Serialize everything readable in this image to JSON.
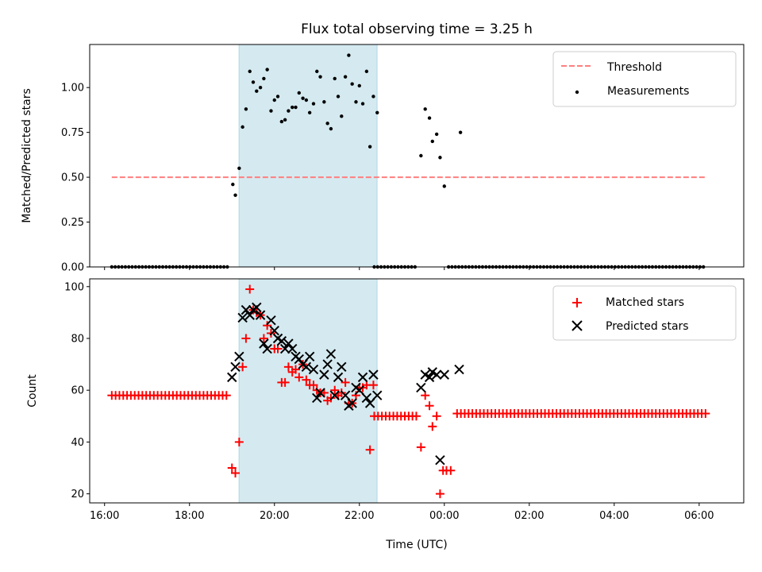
{
  "chart_data": [
    {
      "type": "scatter",
      "panel": "top",
      "title": "Flux total observing time = 3.25 h",
      "xlabel": "",
      "ylabel": "Matched/Predicted stars",
      "x_unit": "hours since 16:00 UTC",
      "xlim": [
        -0.35,
        15.05
      ],
      "ylim": [
        0.0,
        1.24
      ],
      "yticks": [
        0.0,
        0.25,
        0.5,
        0.75,
        1.0
      ],
      "ytick_labels": [
        "0.00",
        "0.25",
        "0.50",
        "0.75",
        "1.00"
      ],
      "xticks": [
        0,
        2,
        4,
        6,
        8,
        10,
        12,
        14
      ],
      "xtick_labels": [
        "16:00",
        "18:00",
        "20:00",
        "22:00",
        "00:00",
        "02:00",
        "04:00",
        "06:00"
      ],
      "highlight_span": {
        "start": "19:10",
        "end": "22:25",
        "color": "#d4eaf0"
      },
      "legend": {
        "placement": "top-right",
        "entries": [
          "Threshold",
          "Measurements"
        ]
      },
      "threshold": {
        "label": "Threshold",
        "value": 0.5,
        "x_start": 0.17,
        "x_end": 14.17,
        "color": "#ff7f7f",
        "style": "dashed"
      },
      "series": [
        {
          "name": "Measurements",
          "marker": "dot",
          "color": "#000000",
          "zero_runs": [
            [
              0.17,
              2.95,
              0.08
            ],
            [
              6.35,
              7.35,
              0.08
            ],
            [
              8.1,
              14.17,
              0.08
            ]
          ],
          "points": [
            [
              3.02,
              0.46
            ],
            [
              3.08,
              0.4
            ],
            [
              3.17,
              0.55
            ],
            [
              3.25,
              0.78
            ],
            [
              3.33,
              0.88
            ],
            [
              3.42,
              1.09
            ],
            [
              3.5,
              1.03
            ],
            [
              3.58,
              0.98
            ],
            [
              3.67,
              1.0
            ],
            [
              3.75,
              1.05
            ],
            [
              3.83,
              1.1
            ],
            [
              3.92,
              0.87
            ],
            [
              4.0,
              0.93
            ],
            [
              4.08,
              0.95
            ],
            [
              4.17,
              0.81
            ],
            [
              4.25,
              0.82
            ],
            [
              4.33,
              0.87
            ],
            [
              4.42,
              0.89
            ],
            [
              4.5,
              0.89
            ],
            [
              4.58,
              0.97
            ],
            [
              4.67,
              0.94
            ],
            [
              4.75,
              0.93
            ],
            [
              4.83,
              0.86
            ],
            [
              4.92,
              0.91
            ],
            [
              5.0,
              1.09
            ],
            [
              5.08,
              1.06
            ],
            [
              5.17,
              0.92
            ],
            [
              5.25,
              0.8
            ],
            [
              5.33,
              0.77
            ],
            [
              5.42,
              1.05
            ],
            [
              5.5,
              0.95
            ],
            [
              5.58,
              0.84
            ],
            [
              5.67,
              1.06
            ],
            [
              5.75,
              1.18
            ],
            [
              5.83,
              1.02
            ],
            [
              5.92,
              0.92
            ],
            [
              6.0,
              1.01
            ],
            [
              6.08,
              0.91
            ],
            [
              6.17,
              1.09
            ],
            [
              6.25,
              0.67
            ],
            [
              6.33,
              0.95
            ],
            [
              6.42,
              0.86
            ],
            [
              7.45,
              0.62
            ],
            [
              7.55,
              0.88
            ],
            [
              7.65,
              0.83
            ],
            [
              7.72,
              0.7
            ],
            [
              7.82,
              0.74
            ],
            [
              7.9,
              0.61
            ],
            [
              8.0,
              0.45
            ],
            [
              8.38,
              0.75
            ]
          ]
        }
      ]
    },
    {
      "type": "scatter",
      "panel": "bottom",
      "title": "",
      "xlabel": "Time (UTC)",
      "ylabel": "Count",
      "x_unit": "hours since 16:00 UTC",
      "xlim": [
        -0.35,
        15.05
      ],
      "ylim": [
        16.5,
        103
      ],
      "yticks": [
        20,
        40,
        60,
        80,
        100
      ],
      "ytick_labels": [
        "20",
        "40",
        "60",
        "80",
        "100"
      ],
      "xticks": [
        0,
        2,
        4,
        6,
        8,
        10,
        12,
        14
      ],
      "xtick_labels": [
        "16:00",
        "18:00",
        "20:00",
        "22:00",
        "00:00",
        "02:00",
        "04:00",
        "06:00"
      ],
      "highlight_span": {
        "start": "19:10",
        "end": "22:25",
        "color": "#d4eaf0"
      },
      "legend": {
        "placement": "top-right",
        "entries": [
          "Matched stars",
          "Predicted stars"
        ]
      },
      "series": [
        {
          "name": "Matched stars",
          "marker": "plus",
          "color": "#ff0000",
          "constant_runs": [
            [
              0.17,
              2.95,
              0.09,
              58
            ],
            [
              6.35,
              7.35,
              0.09,
              50
            ],
            [
              8.3,
              14.17,
              0.09,
              51
            ]
          ],
          "points": [
            [
              3.0,
              30
            ],
            [
              3.08,
              28
            ],
            [
              3.17,
              40
            ],
            [
              3.25,
              69
            ],
            [
              3.33,
              80
            ],
            [
              3.42,
              99
            ],
            [
              3.5,
              91
            ],
            [
              3.58,
              90
            ],
            [
              3.67,
              89
            ],
            [
              3.75,
              80
            ],
            [
              3.83,
              85
            ],
            [
              3.92,
              82
            ],
            [
              4.0,
              76
            ],
            [
              4.08,
              76
            ],
            [
              4.17,
              63
            ],
            [
              4.25,
              63
            ],
            [
              4.33,
              69
            ],
            [
              4.42,
              67
            ],
            [
              4.5,
              68
            ],
            [
              4.58,
              65
            ],
            [
              4.67,
              70
            ],
            [
              4.75,
              64
            ],
            [
              4.83,
              62
            ],
            [
              4.92,
              62
            ],
            [
              5.0,
              60
            ],
            [
              5.08,
              59
            ],
            [
              5.17,
              59
            ],
            [
              5.25,
              56
            ],
            [
              5.33,
              57
            ],
            [
              5.42,
              60
            ],
            [
              5.5,
              58
            ],
            [
              5.58,
              59
            ],
            [
              5.67,
              63
            ],
            [
              5.75,
              55
            ],
            [
              5.83,
              55
            ],
            [
              5.92,
              58
            ],
            [
              6.0,
              61
            ],
            [
              6.08,
              61
            ],
            [
              6.17,
              62
            ],
            [
              6.25,
              37
            ],
            [
              6.33,
              62
            ],
            [
              7.45,
              38
            ],
            [
              7.55,
              58
            ],
            [
              7.65,
              54
            ],
            [
              7.72,
              46
            ],
            [
              7.82,
              50
            ],
            [
              7.9,
              20
            ],
            [
              7.97,
              29
            ],
            [
              8.05,
              29
            ],
            [
              8.15,
              29
            ]
          ]
        },
        {
          "name": "Predicted stars",
          "marker": "x",
          "color": "#000000",
          "points": [
            [
              3.0,
              65
            ],
            [
              3.08,
              69
            ],
            [
              3.17,
              73
            ],
            [
              3.25,
              88
            ],
            [
              3.33,
              91
            ],
            [
              3.42,
              89
            ],
            [
              3.5,
              91
            ],
            [
              3.58,
              92
            ],
            [
              3.67,
              89
            ],
            [
              3.75,
              78
            ],
            [
              3.83,
              76
            ],
            [
              3.92,
              87
            ],
            [
              4.0,
              83
            ],
            [
              4.08,
              80
            ],
            [
              4.17,
              79
            ],
            [
              4.25,
              76
            ],
            [
              4.33,
              78
            ],
            [
              4.42,
              76
            ],
            [
              4.5,
              73
            ],
            [
              4.58,
              72
            ],
            [
              4.67,
              70
            ],
            [
              4.75,
              69
            ],
            [
              4.83,
              73
            ],
            [
              4.92,
              68
            ],
            [
              5.0,
              57
            ],
            [
              5.08,
              59
            ],
            [
              5.17,
              66
            ],
            [
              5.25,
              70
            ],
            [
              5.33,
              74
            ],
            [
              5.42,
              58
            ],
            [
              5.5,
              65
            ],
            [
              5.58,
              69
            ],
            [
              5.67,
              58
            ],
            [
              5.75,
              54
            ],
            [
              5.83,
              55
            ],
            [
              5.92,
              61
            ],
            [
              6.0,
              60
            ],
            [
              6.08,
              65
            ],
            [
              6.17,
              57
            ],
            [
              6.25,
              55
            ],
            [
              6.33,
              66
            ],
            [
              6.42,
              58
            ],
            [
              7.45,
              61
            ],
            [
              7.55,
              66
            ],
            [
              7.65,
              65
            ],
            [
              7.72,
              67
            ],
            [
              7.82,
              66
            ],
            [
              7.9,
              33
            ],
            [
              8.0,
              66
            ],
            [
              8.35,
              68
            ]
          ]
        }
      ]
    }
  ]
}
